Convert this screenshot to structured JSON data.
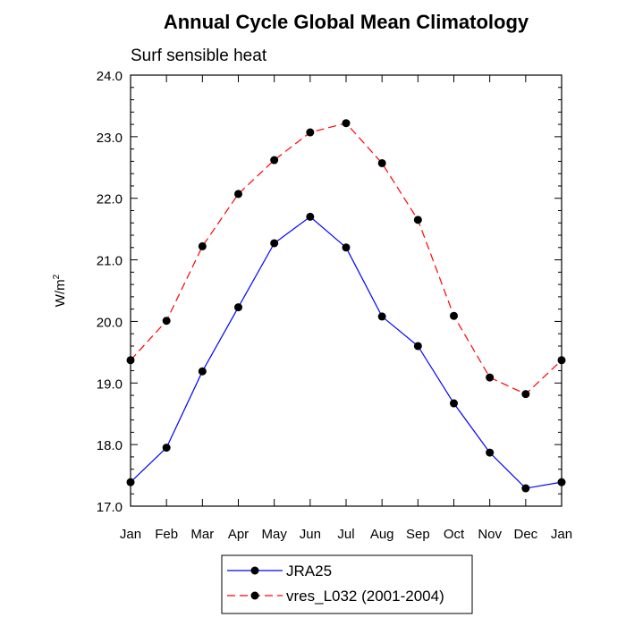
{
  "chart_data": {
    "type": "line",
    "title": "Annual Cycle Global Mean Climatology",
    "subtitle": "Surf sensible heat",
    "ylabel": "W/m",
    "ylabel_sup": "2",
    "xlabel": "",
    "categories": [
      "Jan",
      "Feb",
      "Mar",
      "Apr",
      "May",
      "Jun",
      "Jul",
      "Aug",
      "Sep",
      "Oct",
      "Nov",
      "Dec",
      "Jan"
    ],
    "ylim": [
      17.0,
      24.0
    ],
    "yticks": [
      "17.0",
      "18.0",
      "19.0",
      "20.0",
      "21.0",
      "22.0",
      "23.0",
      "24.0"
    ],
    "grid": false,
    "legend_position": "bottom",
    "series": [
      {
        "name": "JRA25",
        "color": "#0000ff",
        "dash": "solid",
        "values": [
          17.39,
          17.95,
          19.19,
          20.23,
          21.27,
          21.7,
          21.2,
          20.08,
          19.6,
          18.67,
          17.87,
          17.29,
          17.39
        ]
      },
      {
        "name": "vres_L032 (2001-2004)",
        "color": "#ff0000",
        "dash": "dashed",
        "values": [
          19.37,
          20.01,
          21.22,
          22.07,
          22.62,
          23.07,
          23.22,
          22.57,
          21.65,
          20.09,
          19.09,
          18.82,
          19.37
        ]
      }
    ]
  }
}
